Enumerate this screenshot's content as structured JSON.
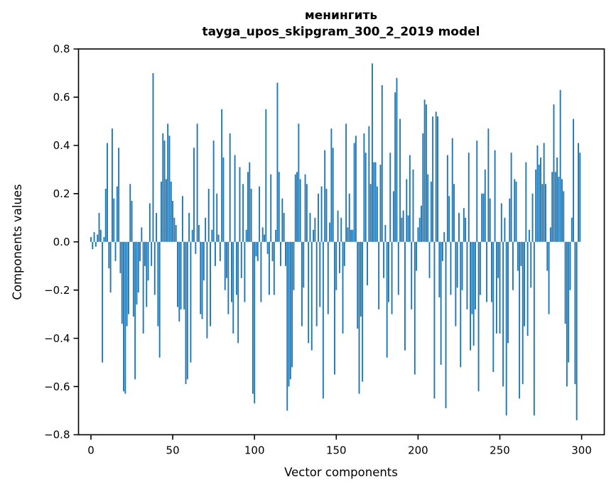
{
  "chart_data": {
    "type": "bar",
    "title": "менингить",
    "subtitle": "tayga_upos_skipgram_300_2_2019 model",
    "xlabel": "Vector components",
    "ylabel": "Components values",
    "legend_position": "none",
    "grid": false,
    "bar_color": "#1f77b4",
    "axis_color": "#000000",
    "background_color": "#ffffff",
    "n_components": 300,
    "x_ticks": [
      0,
      50,
      100,
      150,
      200,
      250,
      300
    ],
    "y_ticks": [
      -0.8,
      -0.6,
      -0.4,
      -0.2,
      0.0,
      0.2,
      0.4,
      0.6,
      0.8
    ],
    "ylim": [
      -0.8,
      0.8
    ],
    "values": [
      0.02,
      -0.03,
      0.04,
      -0.02,
      0.03,
      0.12,
      0.05,
      -0.5,
      0.02,
      0.22,
      0.41,
      -0.11,
      -0.21,
      0.47,
      0.18,
      -0.08,
      0.23,
      0.39,
      -0.13,
      -0.34,
      -0.62,
      -0.63,
      -0.35,
      -0.3,
      0.24,
      0.17,
      -0.31,
      -0.57,
      -0.26,
      -0.21,
      -0.08,
      0.06,
      -0.38,
      -0.1,
      -0.27,
      -0.16,
      0.16,
      -0.1,
      0.7,
      -0.22,
      0.12,
      -0.35,
      -0.48,
      0.25,
      0.45,
      0.42,
      0.26,
      0.49,
      0.44,
      0.25,
      0.17,
      0.1,
      0.07,
      -0.27,
      -0.33,
      -0.28,
      0.19,
      -0.28,
      -0.59,
      -0.57,
      0.12,
      -0.5,
      0.05,
      0.39,
      -0.05,
      0.49,
      0.07,
      -0.3,
      -0.32,
      -0.16,
      0.1,
      -0.4,
      0.22,
      -0.35,
      0.05,
      0.42,
      -0.1,
      0.2,
      0.03,
      -0.08,
      0.55,
      0.35,
      -0.2,
      -0.15,
      -0.3,
      0.45,
      -0.25,
      -0.38,
      0.36,
      -0.22,
      -0.42,
      0.31,
      -0.15,
      0.24,
      -0.25,
      0.05,
      0.29,
      0.33,
      0.22,
      -0.63,
      -0.67,
      -0.06,
      -0.08,
      0.23,
      -0.25,
      0.06,
      0.03,
      0.55,
      -0.05,
      -0.22,
      0.28,
      -0.08,
      -0.22,
      0.05,
      0.66,
      0.29,
      -0.1,
      0.18,
      0.12,
      -0.1,
      -0.7,
      -0.6,
      -0.57,
      -0.52,
      -0.2,
      0.28,
      0.29,
      0.49,
      0.26,
      -0.35,
      -0.19,
      0.28,
      0.24,
      -0.42,
      0.12,
      -0.45,
      0.05,
      0.1,
      -0.35,
      0.2,
      -0.27,
      0.23,
      -0.65,
      0.38,
      0.22,
      -0.3,
      0.08,
      0.47,
      0.39,
      -0.55,
      -0.2,
      0.13,
      -0.13,
      0.1,
      -0.38,
      -0.1,
      0.49,
      0.06,
      0.2,
      0.05,
      0.05,
      0.41,
      0.44,
      -0.36,
      -0.63,
      -0.31,
      -0.58,
      0.45,
      0.37,
      -0.18,
      0.48,
      0.24,
      0.74,
      0.33,
      0.33,
      0.23,
      -0.28,
      0.32,
      0.65,
      -0.15,
      0.07,
      -0.48,
      -0.25,
      0.37,
      -0.3,
      0.21,
      0.62,
      0.68,
      -0.22,
      0.51,
      0.1,
      0.13,
      -0.45,
      0.26,
      0.11,
      0.36,
      -0.28,
      0.3,
      -0.55,
      -0.12,
      0.06,
      0.1,
      0.15,
      0.45,
      0.59,
      0.57,
      0.28,
      -0.15,
      0.25,
      0.52,
      -0.65,
      0.54,
      0.52,
      -0.23,
      -0.51,
      -0.08,
      0.04,
      -0.69,
      0.36,
      0.19,
      -0.22,
      0.43,
      0.24,
      -0.35,
      -0.19,
      0.12,
      -0.52,
      -0.2,
      0.14,
      0.1,
      -0.28,
      0.37,
      -0.45,
      -0.3,
      -0.43,
      -0.28,
      0.42,
      -0.62,
      -0.22,
      0.2,
      0.2,
      0.3,
      -0.25,
      0.47,
      0.18,
      -0.25,
      -0.54,
      0.38,
      -0.38,
      -0.15,
      -0.38,
      0.16,
      -0.6,
      0.1,
      -0.72,
      -0.42,
      0.18,
      0.37,
      -0.2,
      0.26,
      0.25,
      -0.12,
      -0.65,
      -0.1,
      -0.59,
      -0.35,
      0.33,
      -0.39,
      0.05,
      -0.19,
      0.2,
      -0.72,
      0.3,
      0.4,
      0.32,
      0.35,
      0.24,
      0.41,
      0.24,
      -0.12,
      -0.3,
      0.06,
      0.29,
      0.57,
      0.29,
      0.35,
      0.27,
      0.63,
      0.26,
      0.21,
      -0.34,
      -0.6,
      -0.5,
      -0.2,
      0.1,
      0.51,
      -0.59,
      -0.74,
      0.41,
      0.37
    ]
  }
}
